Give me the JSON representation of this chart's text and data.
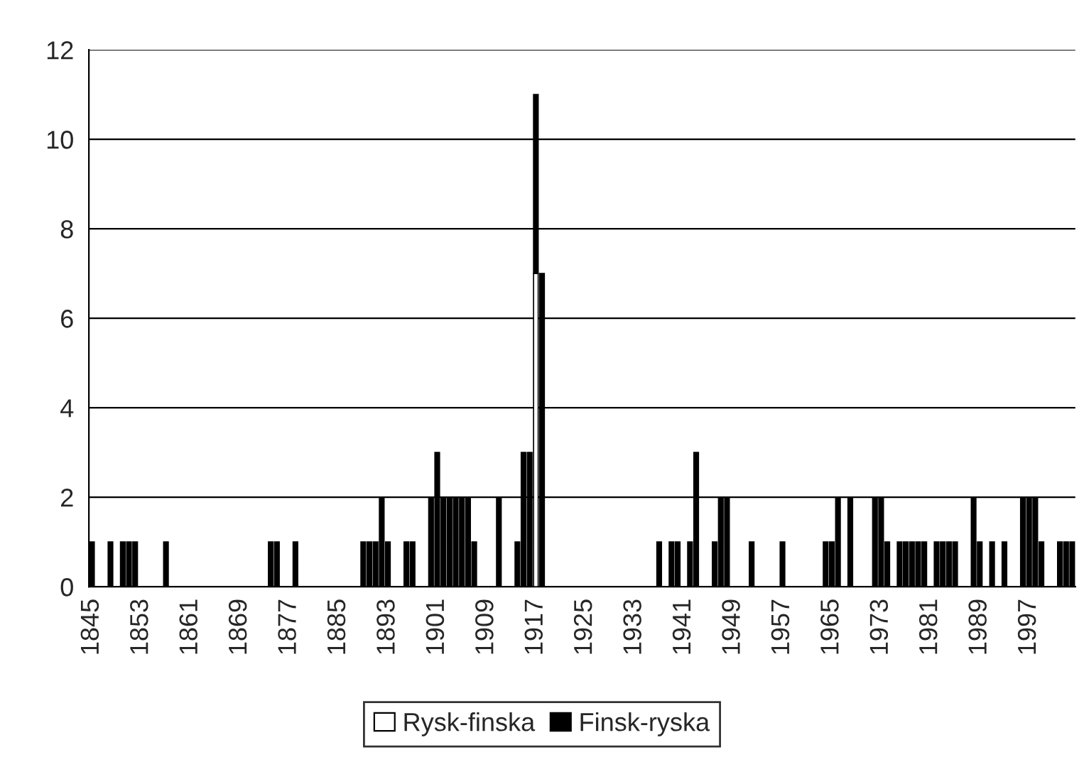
{
  "chart_data": {
    "type": "bar",
    "stacked": true,
    "categories": [
      "1845",
      null,
      null,
      null,
      null,
      null,
      null,
      null,
      "1853",
      null,
      null,
      null,
      null,
      null,
      null,
      null,
      "1861",
      null,
      null,
      null,
      null,
      null,
      null,
      null,
      "1869",
      null,
      null,
      null,
      null,
      null,
      null,
      null,
      "1877",
      null,
      null,
      null,
      null,
      null,
      null,
      null,
      "1885",
      null,
      null,
      null,
      null,
      null,
      null,
      null,
      "1893",
      null,
      null,
      null,
      null,
      null,
      null,
      null,
      "1901",
      null,
      null,
      null,
      null,
      null,
      null,
      null,
      "1909",
      null,
      null,
      null,
      null,
      null,
      null,
      null,
      "1917",
      null,
      null,
      null,
      null,
      null,
      null,
      null,
      "1925",
      null,
      null,
      null,
      null,
      null,
      null,
      null,
      "1933",
      null,
      null,
      null,
      null,
      null,
      null,
      null,
      "1941",
      null,
      null,
      null,
      null,
      null,
      null,
      null,
      "1949",
      null,
      null,
      null,
      null,
      null,
      null,
      null,
      "1957",
      null,
      null,
      null,
      null,
      null,
      null,
      null,
      "1965",
      null,
      null,
      null,
      null,
      null,
      null,
      null,
      "1973",
      null,
      null,
      null,
      null,
      null,
      null,
      null,
      "1981",
      null,
      null,
      null,
      null,
      null,
      null,
      null,
      "1989",
      null,
      null,
      null,
      null,
      null,
      null,
      null,
      "1997",
      null,
      null,
      null,
      null,
      null,
      null,
      null
    ],
    "series": [
      {
        "name": "Rysk-finska",
        "color": "#ffffff",
        "values": [
          0,
          0,
          0,
          0,
          0,
          0,
          0,
          0,
          0,
          0,
          0,
          0,
          0,
          0,
          0,
          0,
          0,
          0,
          0,
          0,
          0,
          0,
          0,
          0,
          0,
          0,
          0,
          0,
          0,
          0,
          0,
          0,
          0,
          0,
          0,
          0,
          0,
          0,
          0,
          0,
          0,
          0,
          0,
          0,
          0,
          0,
          0,
          0,
          0,
          0,
          0,
          0,
          0,
          0,
          0,
          0,
          0,
          0,
          0,
          0,
          0,
          0,
          0,
          0,
          0,
          0,
          0,
          0,
          0,
          0,
          0,
          0,
          7,
          0,
          0,
          0,
          0,
          0,
          0,
          0,
          0,
          0,
          0,
          0,
          0,
          0,
          0,
          0,
          0,
          0,
          0,
          0,
          0,
          0,
          0,
          0,
          0,
          0,
          0,
          0,
          0,
          0,
          0,
          0,
          0,
          0,
          0,
          0,
          0,
          0,
          0,
          0,
          0,
          0,
          0,
          0,
          0,
          0,
          0,
          0,
          0,
          0,
          0,
          0,
          0,
          0,
          0,
          0,
          0,
          0,
          0,
          0,
          0,
          0,
          0,
          0,
          0,
          0,
          0,
          0,
          0,
          0,
          0,
          0,
          0,
          0,
          0,
          0,
          0,
          0,
          0,
          0,
          0,
          0,
          0,
          0,
          0,
          0,
          0,
          0
        ]
      },
      {
        "name": "Finsk-ryska",
        "color": "#000000",
        "values": [
          1,
          0,
          0,
          1,
          0,
          1,
          1,
          1,
          0,
          0,
          0,
          0,
          1,
          0,
          0,
          0,
          0,
          0,
          0,
          0,
          0,
          0,
          0,
          0,
          0,
          0,
          0,
          0,
          0,
          1,
          1,
          0,
          0,
          1,
          0,
          0,
          0,
          0,
          0,
          0,
          0,
          0,
          0,
          0,
          1,
          1,
          1,
          2,
          1,
          0,
          0,
          1,
          1,
          0,
          0,
          2,
          3,
          2,
          2,
          2,
          2,
          2,
          1,
          0,
          0,
          0,
          2,
          0,
          0,
          1,
          3,
          3,
          4,
          7,
          0,
          0,
          0,
          0,
          0,
          0,
          0,
          0,
          0,
          0,
          0,
          0,
          0,
          0,
          0,
          0,
          0,
          0,
          1,
          0,
          1,
          1,
          0,
          1,
          3,
          0,
          0,
          1,
          2,
          2,
          0,
          0,
          0,
          1,
          0,
          0,
          0,
          0,
          1,
          0,
          0,
          0,
          0,
          0,
          0,
          1,
          1,
          2,
          0,
          2,
          0,
          0,
          0,
          2,
          2,
          1,
          0,
          1,
          1,
          1,
          1,
          1,
          0,
          1,
          1,
          1,
          1,
          0,
          0,
          2,
          1,
          0,
          1,
          0,
          1,
          0,
          0,
          2,
          2,
          2,
          1,
          0,
          0,
          1,
          1,
          1
        ]
      }
    ],
    "ylim": [
      0,
      12
    ],
    "yticks": [
      0,
      2,
      4,
      6,
      8,
      10,
      12
    ],
    "grid": "y",
    "legend": "bottom"
  }
}
